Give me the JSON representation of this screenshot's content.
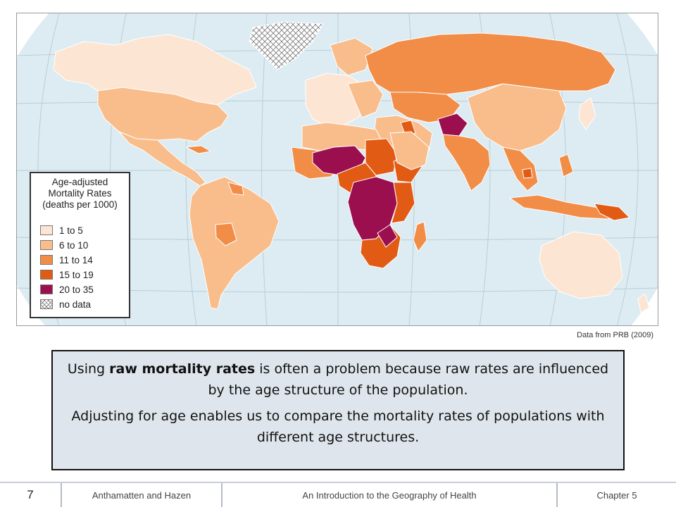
{
  "map": {
    "legend": {
      "title_lines": [
        "Age-adjusted",
        "Mortality Rates",
        "(deaths per 1000)"
      ],
      "items": [
        {
          "label": "1 to 5",
          "color": "#fde5d4"
        },
        {
          "label": "6 to 10",
          "color": "#f9bd8c"
        },
        {
          "label": "11 to 14",
          "color": "#f28d48"
        },
        {
          "label": "15 to 19",
          "color": "#e25b14"
        },
        {
          "label": "20 to 35",
          "color": "#9b0f4f"
        },
        {
          "label": "no data",
          "color": "hatch"
        }
      ]
    },
    "ocean_color": "#dcecf2",
    "graticule_color": "#b9cdd6",
    "border_color": "#ffffff",
    "source": "Data from PRB (2009)"
  },
  "textbox": {
    "p1_before": "Using ",
    "p1_bold": "raw mortality rates",
    "p1_after": " is often a problem because raw rates are influenced by the age structure of the population.",
    "p2": "Adjusting for age enables us to compare the mortality rates of populations with different age structures."
  },
  "footer": {
    "page_number": "7",
    "authors": "Anthamatten and Hazen",
    "book_title": "An Introduction to the Geography of Health",
    "chapter": "Chapter 5"
  }
}
